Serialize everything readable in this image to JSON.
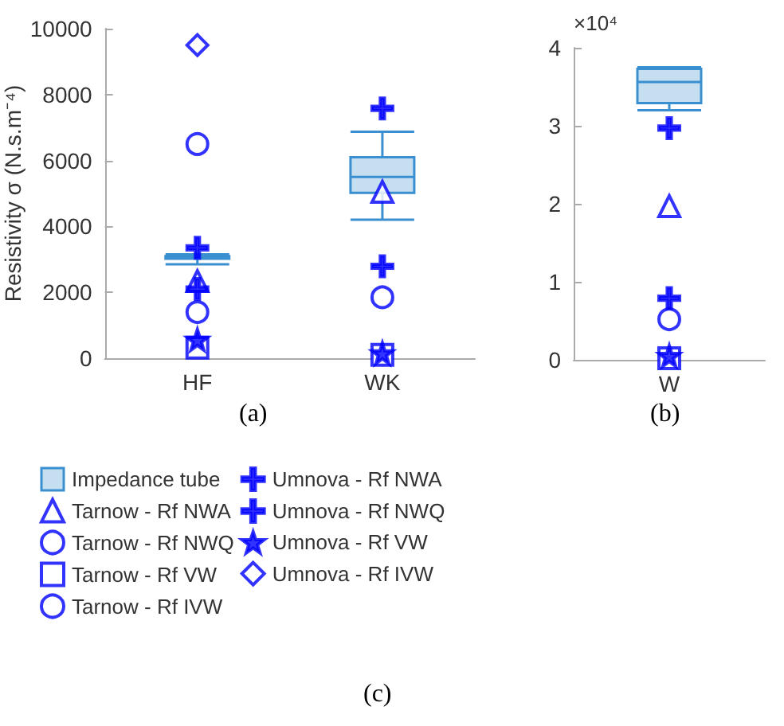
{
  "chart_data": [
    {
      "type": "box",
      "ylabel": "Resistivity σ (N.s.m⁻⁴)",
      "categories": [
        "HF",
        "WK"
      ],
      "ylim": [
        0,
        10000
      ],
      "yticks": [
        0,
        2000,
        4000,
        6000,
        8000,
        10000
      ],
      "grid": false,
      "legend": "bottom",
      "annotations": [
        "(a)",
        "(c)"
      ],
      "series": [
        {
          "name": "Impedance tube",
          "type": "box",
          "color": "#c6dff0",
          "boxes": [
            {
              "low": 2850,
              "q1": 3020,
              "median": 3060,
              "q3": 3100,
              "high": 3150
            },
            {
              "low": 4200,
              "q1": 5020,
              "median": 5500,
              "q3": 6100,
              "high": 6870
            }
          ]
        },
        {
          "name": "Tarnow - Rf NWA",
          "type": "scatter",
          "color": "#0000ff",
          "marker": "triangle",
          "x": [
            "HF",
            "WK"
          ],
          "values": [
            2340,
            5050
          ]
        },
        {
          "name": "Tarnow - Rf NWQ",
          "type": "scatter",
          "color": "#0000ff",
          "marker": "circle",
          "x": [
            "HF",
            "WK"
          ],
          "values": [
            1400,
            1850
          ]
        },
        {
          "name": "Tarnow - Rf VW",
          "type": "scatter",
          "color": "#0000ff",
          "marker": "square",
          "x": [
            "HF",
            "WK"
          ],
          "values": [
            320,
            100
          ]
        },
        {
          "name": "Tarnow - Rf IVW",
          "type": "scatter",
          "color": "#0000ff",
          "marker": "circle",
          "x": [
            "HF"
          ],
          "values": [
            6500
          ]
        },
        {
          "name": "Umnova - Rf NWA",
          "type": "scatter",
          "color": "#0000ff",
          "marker": "cross",
          "x": [
            "HF",
            "WK"
          ],
          "values": [
            3350,
            7580
          ]
        },
        {
          "name": "Umnova - Rf NWQ",
          "type": "scatter",
          "color": "#0000ff",
          "marker": "cross",
          "x": [
            "HF",
            "WK"
          ],
          "values": [
            2100,
            2790
          ]
        },
        {
          "name": "Umnova - Rf VW",
          "type": "scatter",
          "color": "#0000ff",
          "marker": "star",
          "x": [
            "HF",
            "WK"
          ],
          "values": [
            560,
            150
          ]
        },
        {
          "name": "Umnova - Rf IVW",
          "type": "scatter",
          "color": "#0000ff",
          "marker": "diamond",
          "x": [
            "HF"
          ],
          "values": [
            9500
          ]
        }
      ]
    },
    {
      "type": "box",
      "categories": [
        "W"
      ],
      "ylim": [
        0,
        4
      ],
      "yticks": [
        0,
        1,
        2,
        3,
        4
      ],
      "grid": false,
      "annotations": [
        "(b)",
        "×10⁴"
      ],
      "series": [
        {
          "type": "box",
          "color": "#c6dff0",
          "boxes": [
            {
              "low": 3.2,
              "q1": 3.29,
              "median": 3.56,
              "q3": 3.73,
              "high": 3.75
            }
          ]
        },
        {
          "type": "scatter",
          "color": "#0000ff",
          "marker": "triangle",
          "x": [
            "W"
          ],
          "values": [
            1.97
          ]
        },
        {
          "type": "scatter",
          "color": "#0000ff",
          "marker": "circle",
          "x": [
            "W"
          ],
          "values": [
            0.52
          ]
        },
        {
          "type": "scatter",
          "color": "#0000ff",
          "marker": "square",
          "x": [
            "W"
          ],
          "values": [
            0.02
          ]
        },
        {
          "type": "scatter",
          "color": "#0000ff",
          "marker": "cross",
          "x": [
            "W"
          ],
          "values": [
            2.97
          ]
        },
        {
          "type": "scatter",
          "color": "#0000ff",
          "marker": "cross",
          "x": [
            "W"
          ],
          "values": [
            0.79
          ]
        },
        {
          "type": "scatter",
          "color": "#0000ff",
          "marker": "star",
          "x": [
            "W"
          ],
          "values": [
            0.05
          ]
        }
      ]
    }
  ]
}
